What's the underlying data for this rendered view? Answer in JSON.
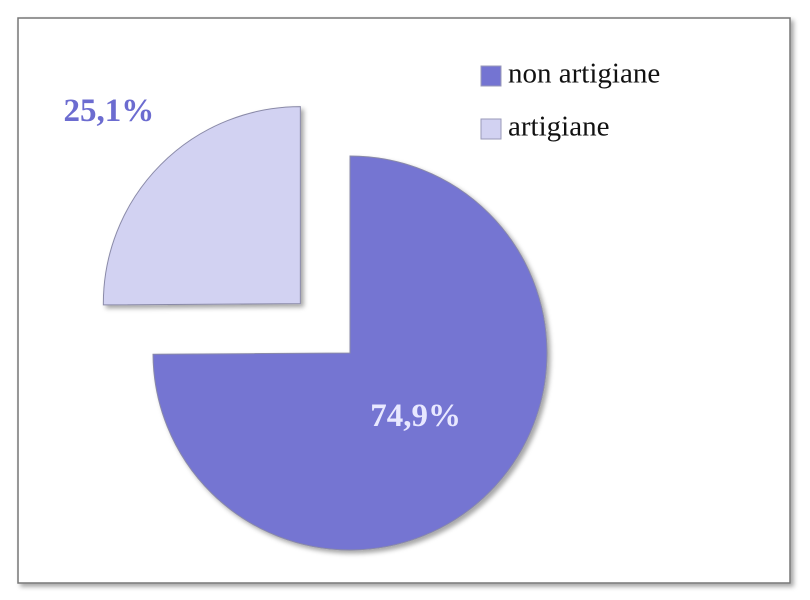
{
  "chart_data": {
    "type": "pie",
    "categories": [
      "non artigiane",
      "artigiane"
    ],
    "values": [
      74.9,
      25.1
    ],
    "value_labels": [
      "74,9%",
      "25,1%"
    ],
    "colors": [
      "#7474d2",
      "#d2d2f2"
    ],
    "label_colors": [
      "#e8e8ff",
      "#6c6cd0"
    ],
    "exploded": [
      false,
      true
    ],
    "legend": "top-right"
  }
}
